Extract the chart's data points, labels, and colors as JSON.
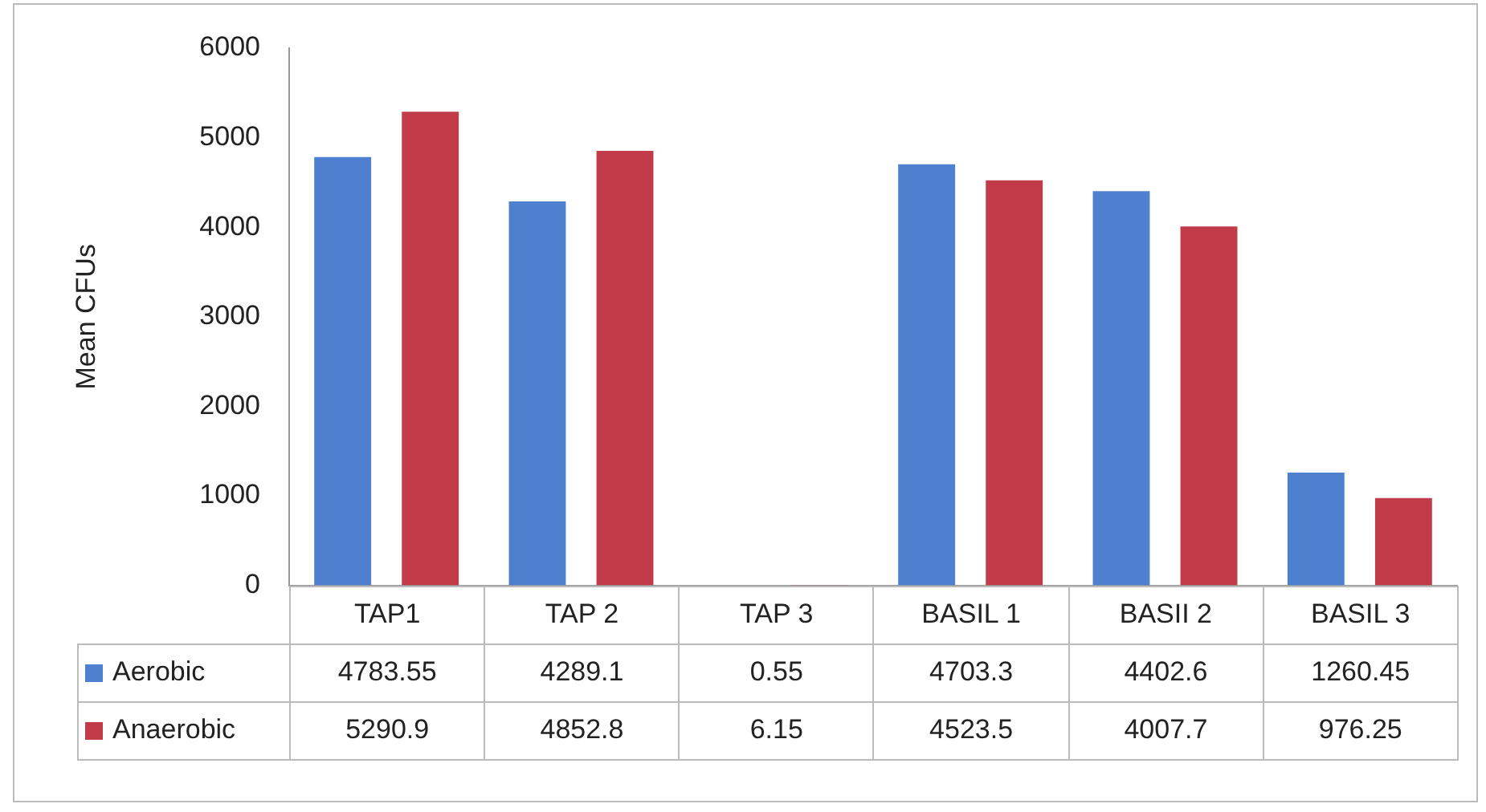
{
  "chart_data": {
    "type": "bar",
    "ylabel": "Mean CFUs",
    "categories": [
      "TAP1",
      "TAP 2",
      "TAP 3",
      "BASIL 1",
      "BASII 2",
      "BASIL 3"
    ],
    "series": [
      {
        "name": "Aerobic",
        "color": "#4f7fcf",
        "values": [
          4783.55,
          4289.1,
          0.55,
          4703.3,
          4402.6,
          1260.45
        ]
      },
      {
        "name": "Anaerobic",
        "color": "#c23b48",
        "values": [
          5290.9,
          4852.8,
          6.15,
          4523.5,
          4007.7,
          976.25
        ]
      }
    ],
    "ylim": [
      0,
      6000
    ],
    "yticks": [
      0,
      1000,
      2000,
      3000,
      4000,
      5000,
      6000
    ],
    "grid": false,
    "legend": "bottom",
    "data_labels": true
  }
}
